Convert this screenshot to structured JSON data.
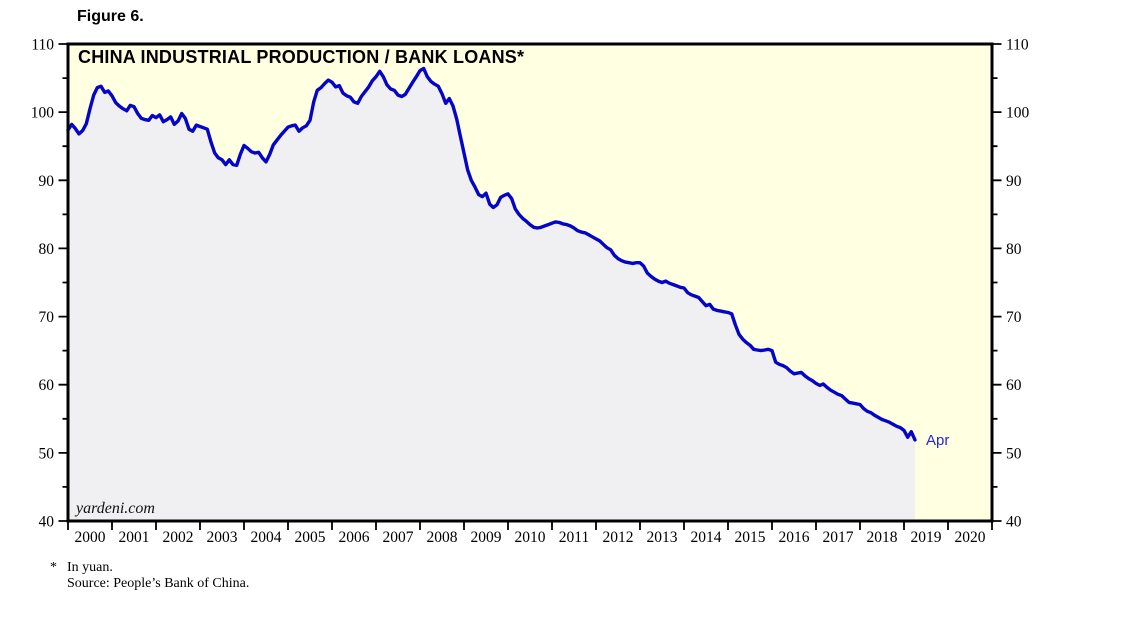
{
  "figure_label": "Figure 6.",
  "footnote": {
    "marker": "*",
    "line1": "In yuan.",
    "line2": "Source: People’s Bank of China."
  },
  "chart_data": {
    "type": "line",
    "title": "CHINA INDUSTRIAL PRODUCTION / BANK LOANS*",
    "watermark": "yardeni.com",
    "last_point_label": "Apr",
    "x_start": "2000-01",
    "x_end": "2019-04",
    "frequency": "monthly",
    "ylim": [
      40,
      110
    ],
    "y_major_ticks": [
      40,
      50,
      60,
      70,
      80,
      90,
      100,
      110
    ],
    "y_minor_step": 5,
    "x_tick_labels": [
      "2000",
      "2001",
      "2002",
      "2003",
      "2004",
      "2005",
      "2006",
      "2007",
      "2008",
      "2009",
      "2010",
      "2011",
      "2012",
      "2013",
      "2014",
      "2015",
      "2016",
      "2017",
      "2018",
      "2019",
      "2020"
    ],
    "grid": false,
    "legend": "none",
    "series": [
      {
        "name": "China industrial production / bank loans (in yuan)",
        "values": [
          97.4,
          98.2,
          97.6,
          96.8,
          97.3,
          98.3,
          100.5,
          102.5,
          103.6,
          103.8,
          102.9,
          103.1,
          102.4,
          101.4,
          100.9,
          100.5,
          100.2,
          101.0,
          100.8,
          99.8,
          99.1,
          98.9,
          98.8,
          99.5,
          99.2,
          99.6,
          98.6,
          98.9,
          99.3,
          98.2,
          98.7,
          99.8,
          99.1,
          97.5,
          97.2,
          98.1,
          97.9,
          97.7,
          97.5,
          95.6,
          94.0,
          93.3,
          93.0,
          92.3,
          93.0,
          92.3,
          92.2,
          93.8,
          95.1,
          94.7,
          94.2,
          94.0,
          94.1,
          93.3,
          92.7,
          93.8,
          95.2,
          95.9,
          96.6,
          97.2,
          97.8,
          98.0,
          98.1,
          97.2,
          97.7,
          98.0,
          98.8,
          101.5,
          103.2,
          103.6,
          104.2,
          104.7,
          104.4,
          103.7,
          103.9,
          102.8,
          102.4,
          102.2,
          101.5,
          101.3,
          102.3,
          103.0,
          103.7,
          104.6,
          105.2,
          106.0,
          105.2,
          104.0,
          103.4,
          103.2,
          102.5,
          102.3,
          102.6,
          103.5,
          104.4,
          105.2,
          106.1,
          106.4,
          105.2,
          104.5,
          104.1,
          103.8,
          102.7,
          101.3,
          102.0,
          100.9,
          99.0,
          96.5,
          94.0,
          91.5,
          90.0,
          89.0,
          87.9,
          87.6,
          88.1,
          86.5,
          86.0,
          86.4,
          87.5,
          87.8,
          88.0,
          87.3,
          85.8,
          85.0,
          84.4,
          84.0,
          83.5,
          83.1,
          83.0,
          83.1,
          83.3,
          83.5,
          83.7,
          83.9,
          83.8,
          83.6,
          83.5,
          83.3,
          83.0,
          82.6,
          82.4,
          82.3,
          82.0,
          81.7,
          81.4,
          81.1,
          80.6,
          80.1,
          79.8,
          79.0,
          78.5,
          78.2,
          78.0,
          77.9,
          77.8,
          77.9,
          77.9,
          77.4,
          76.4,
          75.9,
          75.5,
          75.2,
          75.0,
          75.2,
          74.9,
          74.7,
          74.5,
          74.3,
          74.2,
          73.5,
          73.2,
          73.0,
          72.8,
          72.2,
          71.6,
          71.8,
          71.1,
          70.9,
          70.8,
          70.7,
          70.6,
          70.4,
          68.8,
          67.4,
          66.7,
          66.2,
          65.8,
          65.2,
          65.1,
          65.0,
          65.1,
          65.2,
          65.0,
          63.3,
          63.0,
          62.8,
          62.5,
          62.0,
          61.6,
          61.7,
          61.8,
          61.3,
          60.9,
          60.6,
          60.2,
          59.9,
          60.1,
          59.6,
          59.2,
          58.9,
          58.6,
          58.4,
          57.9,
          57.4,
          57.3,
          57.2,
          57.1,
          56.5,
          56.1,
          55.9,
          55.5,
          55.2,
          54.9,
          54.7,
          54.5,
          54.2,
          53.9,
          53.7,
          53.3,
          52.3,
          53.1,
          51.9
        ]
      }
    ],
    "styles": {
      "line_color": "#0505c9",
      "end_label_color": "#2525dc",
      "plot_bg": "#ffffe1",
      "fill_under_line": "#f0f0f2",
      "axis_color": "#000000"
    }
  }
}
